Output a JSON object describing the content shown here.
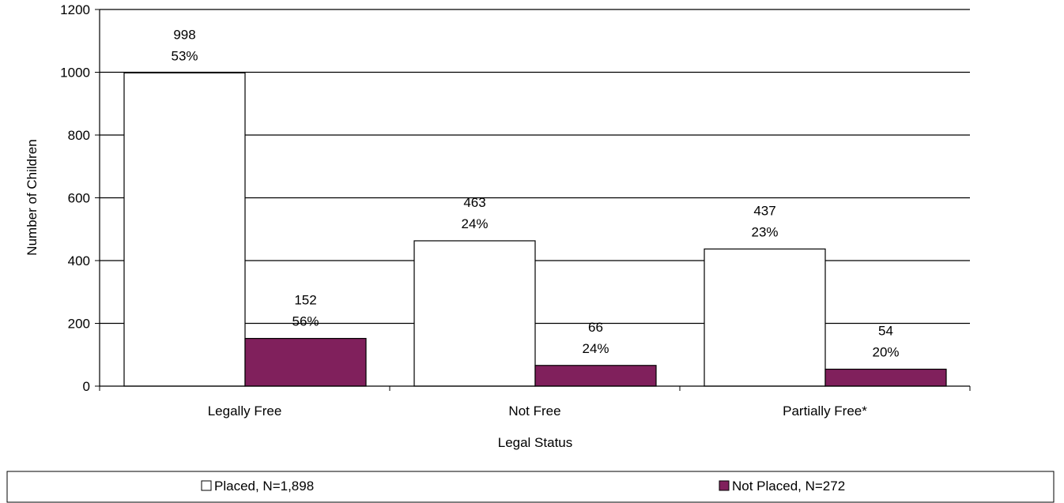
{
  "chart_data": {
    "type": "bar",
    "title": "",
    "xlabel": "Legal Status",
    "ylabel": "Number of Children",
    "ylim": [
      0,
      1200
    ],
    "yticks": [
      0,
      200,
      400,
      600,
      800,
      1000,
      1200
    ],
    "grid": true,
    "legend_position": "bottom",
    "categories": [
      "Legally Free",
      "Not Free",
      "Partially Free*"
    ],
    "series": [
      {
        "name": "Placed, N=1,898",
        "color": "#ffffff",
        "values": [
          998,
          463,
          437
        ],
        "percent_labels": [
          "53%",
          "24%",
          "23%"
        ]
      },
      {
        "name": "Not Placed, N=272",
        "color": "#80205c",
        "values": [
          152,
          66,
          54
        ],
        "percent_labels": [
          "56%",
          "24%",
          "20%"
        ]
      }
    ]
  }
}
